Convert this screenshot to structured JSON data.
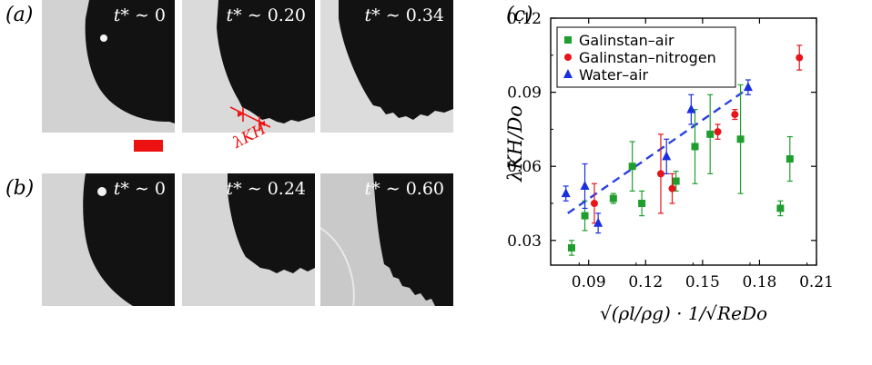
{
  "panels": {
    "a_label": "(a)",
    "b_label": "(b)",
    "c_label": "(c)",
    "t_prefix": "t* ∼ ",
    "row_a_times": [
      "0",
      "0.20",
      "0.34"
    ],
    "row_b_times": [
      "0",
      "0.24",
      "0.60"
    ],
    "lambda_annotation": "λKH"
  },
  "colors": {
    "galinstan_air": "#1f9e2e",
    "galinstan_nitrogen": "#e8141a",
    "water_air": "#1a2fe0",
    "fit_line": "#2a3fe0",
    "scale_bar": "#ee1111",
    "droplet": "#121212",
    "background": "#d6d6d6"
  },
  "chart_data": {
    "type": "scatter",
    "ylabel": "λKH/Do",
    "xlabel": "√(ρl/ρg) · 1/√ReDo",
    "xlim": [
      0.07,
      0.21
    ],
    "ylim": [
      0.02,
      0.12
    ],
    "xticks": [
      "0.09",
      "0.12",
      "0.15",
      "0.18",
      "0.21"
    ],
    "yticks": [
      "0.03",
      "0.06",
      "0.09",
      "0.12"
    ],
    "legend_position": "top-left",
    "series": [
      {
        "name": "Galinstan–air",
        "marker": "square",
        "points": [
          {
            "x": 0.081,
            "y": 0.027,
            "err": 0.003
          },
          {
            "x": 0.088,
            "y": 0.04,
            "err": 0.006
          },
          {
            "x": 0.103,
            "y": 0.047,
            "err": 0.002
          },
          {
            "x": 0.113,
            "y": 0.06,
            "err": 0.01
          },
          {
            "x": 0.118,
            "y": 0.045,
            "err": 0.005
          },
          {
            "x": 0.136,
            "y": 0.054,
            "err": 0.004
          },
          {
            "x": 0.146,
            "y": 0.068,
            "err": 0.015
          },
          {
            "x": 0.154,
            "y": 0.073,
            "err": 0.016
          },
          {
            "x": 0.17,
            "y": 0.071,
            "err": 0.022
          },
          {
            "x": 0.191,
            "y": 0.043,
            "err": 0.003
          },
          {
            "x": 0.196,
            "y": 0.063,
            "err": 0.009
          }
        ]
      },
      {
        "name": "Galinstan–nitrogen",
        "marker": "circle",
        "points": [
          {
            "x": 0.093,
            "y": 0.045,
            "err": 0.008
          },
          {
            "x": 0.128,
            "y": 0.057,
            "err": 0.016
          },
          {
            "x": 0.134,
            "y": 0.051,
            "err": 0.006
          },
          {
            "x": 0.158,
            "y": 0.074,
            "err": 0.003
          },
          {
            "x": 0.167,
            "y": 0.081,
            "err": 0.002
          },
          {
            "x": 0.201,
            "y": 0.104,
            "err": 0.005
          }
        ]
      },
      {
        "name": "Water–air",
        "marker": "triangle",
        "points": [
          {
            "x": 0.078,
            "y": 0.049,
            "err": 0.003
          },
          {
            "x": 0.088,
            "y": 0.052,
            "err": 0.009
          },
          {
            "x": 0.095,
            "y": 0.037,
            "err": 0.004
          },
          {
            "x": 0.131,
            "y": 0.064,
            "err": 0.007
          },
          {
            "x": 0.144,
            "y": 0.083,
            "err": 0.006
          },
          {
            "x": 0.174,
            "y": 0.092,
            "err": 0.003
          }
        ]
      }
    ],
    "fit_line": {
      "x": [
        0.079,
        0.173
      ],
      "y": [
        0.041,
        0.091
      ]
    }
  }
}
